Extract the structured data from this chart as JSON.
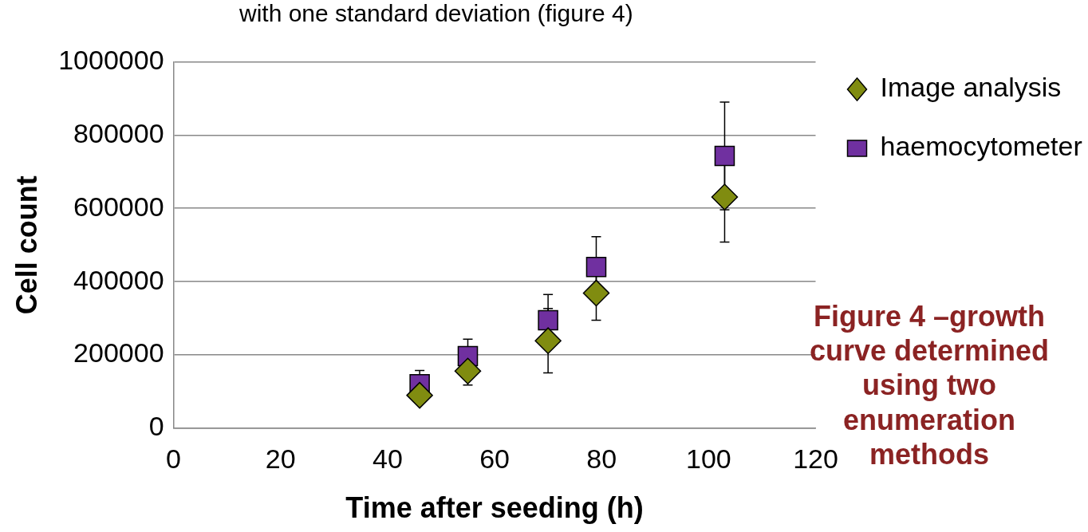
{
  "chart_data": {
    "type": "scatter",
    "subtitle": "with one standard deviation (figure 4)",
    "xlabel": "Time after seeding (h)",
    "ylabel": "Cell count",
    "x": [
      46,
      55,
      70,
      79,
      103
    ],
    "series": [
      {
        "name": "Image analysis",
        "color": "#808c10",
        "marker": "diamond",
        "values": [
          90000,
          156000,
          239000,
          369000,
          631000
        ],
        "errors": [
          null,
          38000,
          88000,
          74000,
          123000
        ]
      },
      {
        "name": "haemocytometer",
        "color": "#7030a0",
        "marker": "square",
        "values": [
          120000,
          197000,
          295000,
          440000,
          743000
        ],
        "errors": [
          38000,
          46000,
          70000,
          83000,
          147000
        ]
      }
    ],
    "xlim": [
      0,
      120
    ],
    "xticks": [
      0,
      20,
      40,
      60,
      80,
      100,
      120
    ],
    "ylim": [
      0,
      1000000
    ],
    "yticks": [
      0,
      200000,
      400000,
      600000,
      800000,
      1000000
    ],
    "grid": "y",
    "legend": "top right",
    "annotations": [
      "Figure 4 –growth curve determined using two enumeration methods"
    ]
  }
}
